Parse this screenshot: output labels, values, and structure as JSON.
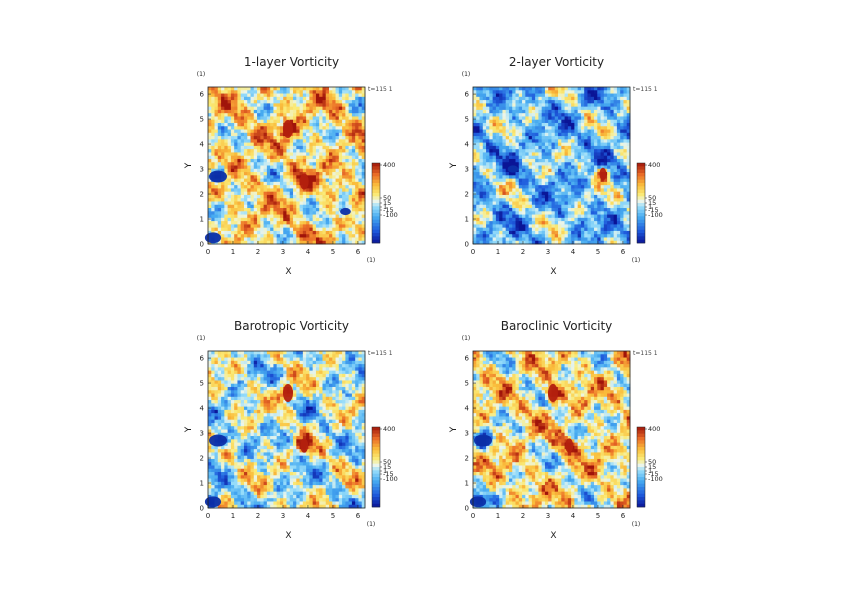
{
  "figure": {
    "time_stamp": "t=115 1"
  },
  "chart_data": [
    {
      "type": "heatmap",
      "title": "1-layer Vorticity",
      "xlabel": "X",
      "ylabel": "Y",
      "x_unit": "(1)",
      "y_unit": "(1)",
      "xlim": [
        0,
        6.283
      ],
      "ylim": [
        0,
        6.283
      ],
      "xticks": [
        "0",
        "1",
        "2",
        "3",
        "4",
        "5",
        "6"
      ],
      "yticks": [
        "0",
        "1",
        "2",
        "3",
        "4",
        "5",
        "6"
      ],
      "colorbar": {
        "labels": [
          "400",
          "50",
          "15",
          "1",
          "-15",
          "-100"
        ],
        "levels": [
          400,
          50,
          15,
          1,
          -15,
          -100
        ]
      },
      "background_bias": 0.25,
      "vortices": [
        {
          "x": 3.2,
          "y": 4.6,
          "sign": 1,
          "strength": 1.0
        },
        {
          "x": 3.85,
          "y": 2.5,
          "sign": 1,
          "strength": 0.9
        },
        {
          "x": 0.4,
          "y": 2.7,
          "sign": -1,
          "strength": 1.0
        },
        {
          "x": 0.2,
          "y": 0.25,
          "sign": -1,
          "strength": 0.9
        },
        {
          "x": 5.5,
          "y": 1.3,
          "sign": -1,
          "strength": 0.6
        }
      ]
    },
    {
      "type": "heatmap",
      "title": "2-layer Vorticity",
      "xlabel": "X",
      "ylabel": "Y",
      "x_unit": "(1)",
      "y_unit": "(1)",
      "xlim": [
        0,
        6.283
      ],
      "ylim": [
        0,
        6.283
      ],
      "xticks": [
        "0",
        "1",
        "2",
        "3",
        "4",
        "5",
        "6"
      ],
      "yticks": [
        "0",
        "1",
        "2",
        "3",
        "4",
        "5",
        "6"
      ],
      "colorbar": {
        "labels": [
          "400",
          "50",
          "15",
          "1",
          "-15",
          "-100"
        ],
        "levels": [
          400,
          50,
          15,
          1,
          -15,
          -100
        ]
      },
      "background_bias": -0.25,
      "vortices": [
        {
          "x": 5.2,
          "y": 2.8,
          "sign": 1,
          "strength": 0.7
        },
        {
          "x": 1.6,
          "y": 3.0,
          "sign": -1,
          "strength": 0.6
        }
      ]
    },
    {
      "type": "heatmap",
      "title": "Barotropic Vorticity",
      "xlabel": "X",
      "ylabel": "Y",
      "x_unit": "(1)",
      "y_unit": "(1)",
      "xlim": [
        0,
        6.283
      ],
      "ylim": [
        0,
        6.283
      ],
      "xticks": [
        "0",
        "1",
        "2",
        "3",
        "4",
        "5",
        "6"
      ],
      "yticks": [
        "0",
        "1",
        "2",
        "3",
        "4",
        "5",
        "6"
      ],
      "colorbar": {
        "labels": [
          "400",
          "50",
          "15",
          "1",
          "-15",
          "-100"
        ],
        "levels": [
          400,
          50,
          15,
          1,
          -15,
          -100
        ]
      },
      "background_bias": 0.0,
      "vortices": [
        {
          "x": 3.2,
          "y": 4.6,
          "sign": 1,
          "strength": 1.0
        },
        {
          "x": 3.85,
          "y": 2.5,
          "sign": 1,
          "strength": 0.8
        },
        {
          "x": 0.4,
          "y": 2.7,
          "sign": -1,
          "strength": 1.0
        },
        {
          "x": 0.2,
          "y": 0.25,
          "sign": -1,
          "strength": 0.9
        }
      ]
    },
    {
      "type": "heatmap",
      "title": "Baroclinic Vorticity",
      "xlabel": "X",
      "ylabel": "Y",
      "x_unit": "(1)",
      "y_unit": "(1)",
      "xlim": [
        0,
        6.283
      ],
      "ylim": [
        0,
        6.283
      ],
      "xticks": [
        "0",
        "1",
        "2",
        "3",
        "4",
        "5",
        "6"
      ],
      "yticks": [
        "0",
        "1",
        "2",
        "3",
        "4",
        "5",
        "6"
      ],
      "colorbar": {
        "labels": [
          "400",
          "50",
          "15",
          "1",
          "-15",
          "-100"
        ],
        "levels": [
          400,
          50,
          15,
          1,
          -15,
          -100
        ]
      },
      "background_bias": 0.2,
      "vortices": [
        {
          "x": 3.2,
          "y": 4.6,
          "sign": 1,
          "strength": 1.0
        },
        {
          "x": 3.85,
          "y": 2.5,
          "sign": 1,
          "strength": 0.8
        },
        {
          "x": 0.4,
          "y": 2.7,
          "sign": -1,
          "strength": 1.0
        },
        {
          "x": 0.2,
          "y": 0.25,
          "sign": -1,
          "strength": 0.9
        }
      ]
    }
  ]
}
